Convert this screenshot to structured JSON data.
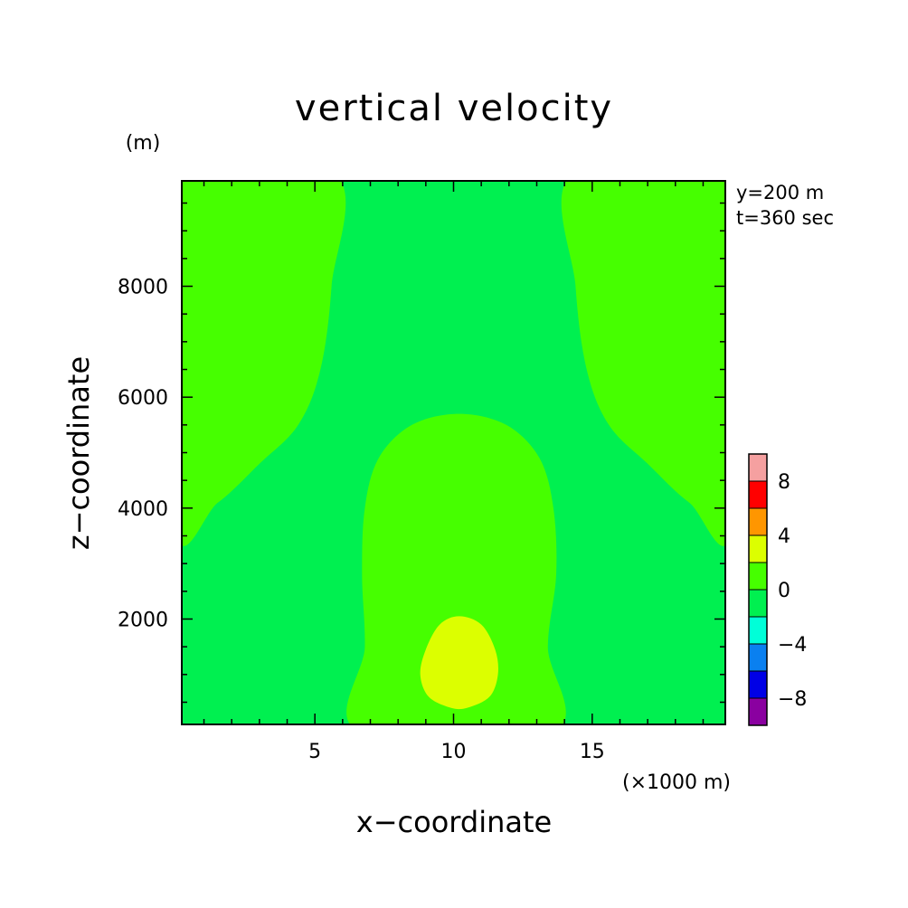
{
  "chart_data": {
    "type": "heatmap",
    "title": "vertical velocity",
    "xlabel": "x−coordinate",
    "ylabel": "z−coordinate",
    "x_unit": "(×1000 m)",
    "y_unit": "(m)",
    "annotations": [
      "y=200 m",
      "t=360 sec"
    ],
    "xlim": [
      0.2,
      19.8
    ],
    "ylim": [
      100,
      9900
    ],
    "x_ticks": [
      5,
      10,
      15
    ],
    "y_ticks": [
      2000,
      4000,
      6000,
      8000
    ],
    "colorbar": {
      "levels": [
        -10,
        -8,
        -6,
        -4,
        -2,
        0,
        2,
        4,
        6,
        8,
        10
      ],
      "colors": [
        "#8a00a0",
        "#0000e6",
        "#0a80f0",
        "#00ffd8",
        "#00f050",
        "#46ff00",
        "#dcff00",
        "#ff9600",
        "#ff0000",
        "#f5a0a0"
      ],
      "tick_labels": [
        "8",
        "4",
        "0",
        "−4",
        "−8"
      ],
      "tick_values": [
        8,
        4,
        0,
        -4,
        -8
      ]
    },
    "regions": [
      {
        "level_range": [
          -2,
          0
        ],
        "color": "#00f050",
        "description": "background"
      },
      {
        "level_range": [
          0,
          2
        ],
        "color": "#46ff00",
        "outline": [
          [
            0.2,
            3700
          ],
          [
            1.5,
            4100
          ],
          [
            3.0,
            4800
          ],
          [
            4.4,
            5500
          ],
          [
            5.2,
            6500
          ],
          [
            5.6,
            8000
          ],
          [
            5.7,
            9900
          ],
          [
            0.2,
            9900
          ]
        ]
      },
      {
        "level_range": [
          0,
          2
        ],
        "color": "#46ff00",
        "outline": [
          [
            19.8,
            3700
          ],
          [
            18.5,
            4100
          ],
          [
            17.0,
            4800
          ],
          [
            15.6,
            5500
          ],
          [
            14.8,
            6500
          ],
          [
            14.4,
            8000
          ],
          [
            14.3,
            9900
          ],
          [
            19.8,
            9900
          ]
        ]
      },
      {
        "level_range": [
          0,
          2
        ],
        "color": "#46ff00",
        "outline": [
          [
            6.6,
            100
          ],
          [
            6.8,
            1500
          ],
          [
            6.7,
            2800
          ],
          [
            6.8,
            4000
          ],
          [
            7.3,
            4900
          ],
          [
            8.5,
            5500
          ],
          [
            10.2,
            5700
          ],
          [
            11.9,
            5500
          ],
          [
            13.1,
            4900
          ],
          [
            13.6,
            4000
          ],
          [
            13.7,
            2800
          ],
          [
            13.4,
            1500
          ],
          [
            13.6,
            100
          ]
        ]
      },
      {
        "level_range": [
          2,
          4
        ],
        "color": "#dcff00",
        "outline": [
          [
            10.2,
            2050
          ],
          [
            11.0,
            1900
          ],
          [
            11.5,
            1450
          ],
          [
            11.6,
            1000
          ],
          [
            11.3,
            600
          ],
          [
            10.5,
            400
          ],
          [
            9.9,
            400
          ],
          [
            9.1,
            600
          ],
          [
            8.8,
            1000
          ],
          [
            9.0,
            1450
          ],
          [
            9.5,
            1900
          ]
        ]
      }
    ]
  }
}
